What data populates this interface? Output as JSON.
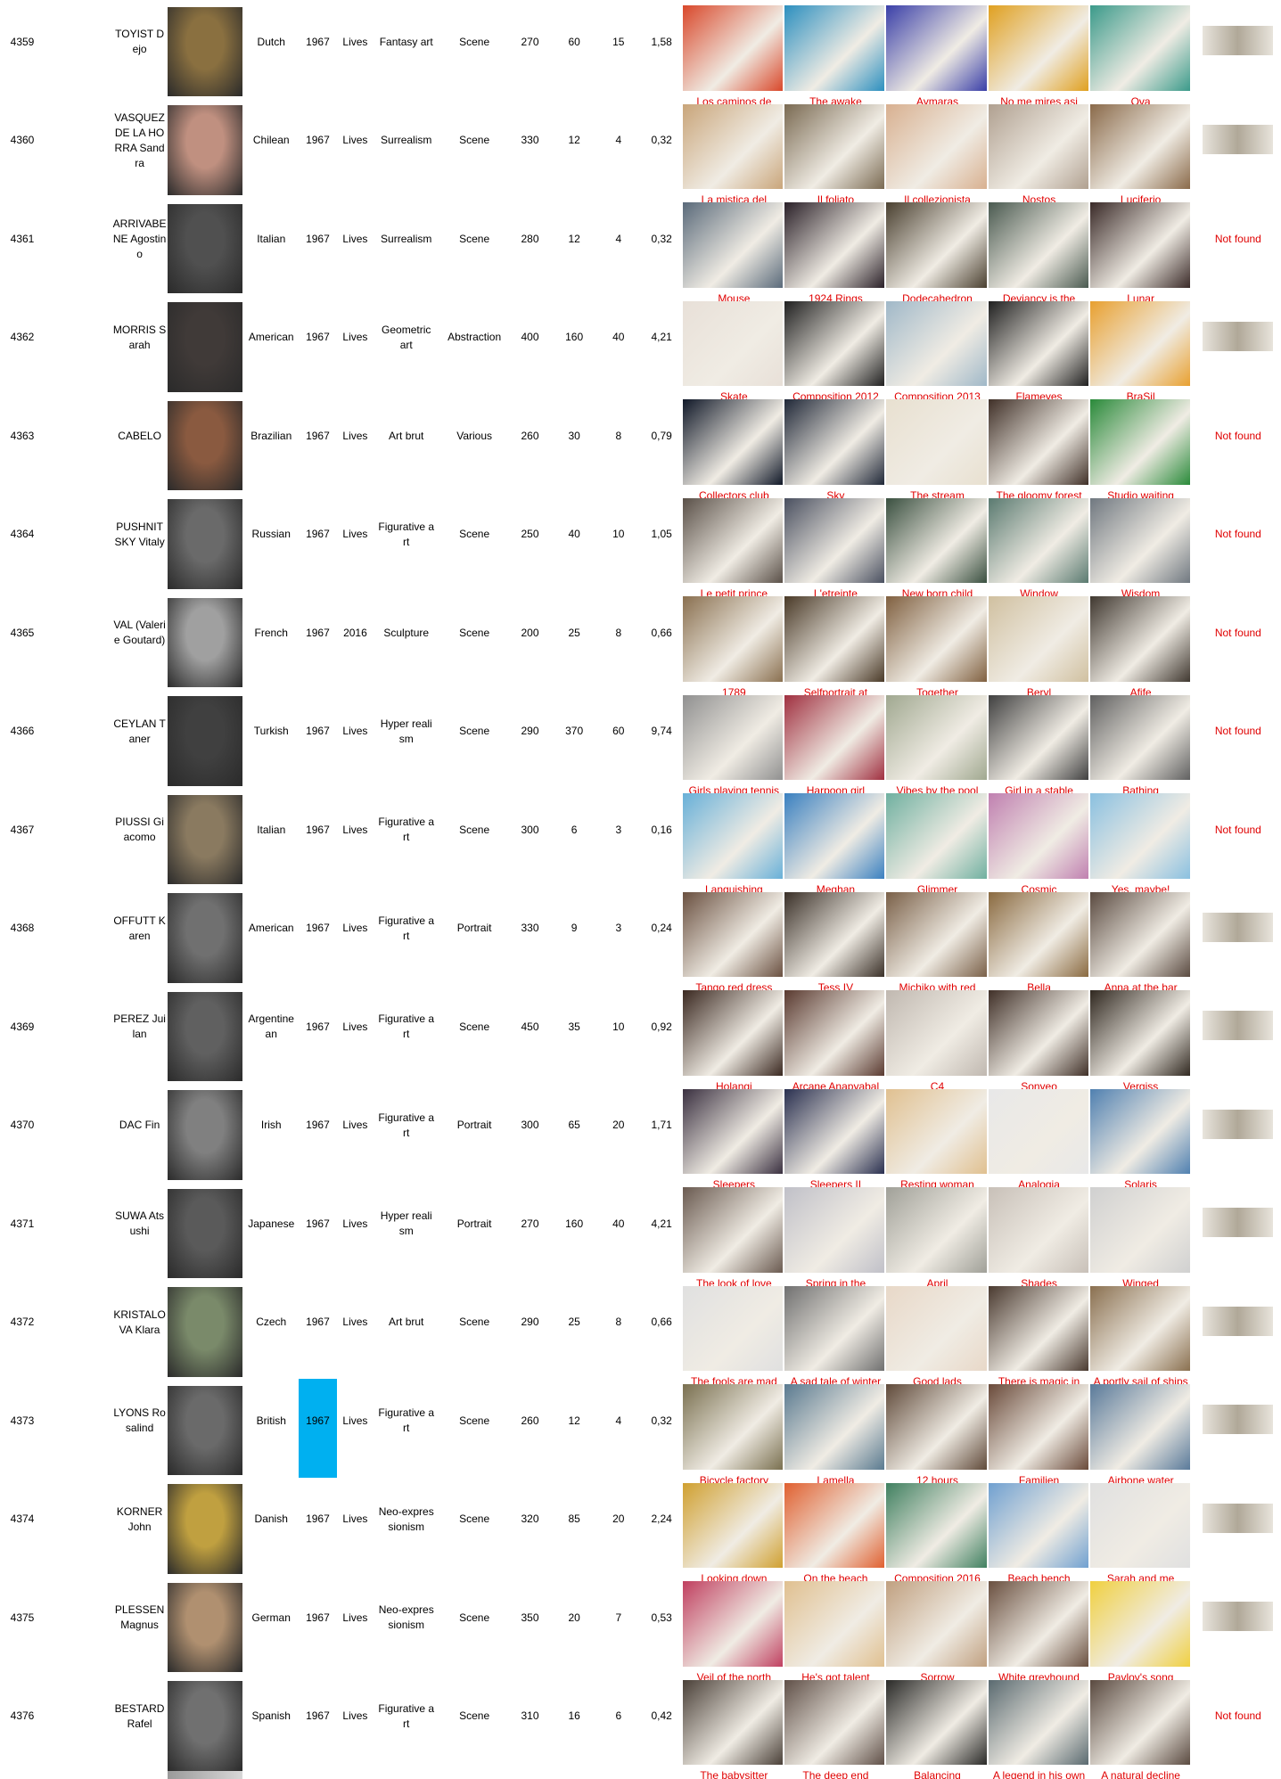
{
  "rows": [
    {
      "id": "4359",
      "name": "TOYIST Dejo",
      "nationality": "Dutch",
      "born": "1967",
      "died": "Lives",
      "movement": "Fantasy art",
      "genre": "Scene",
      "price": "270",
      "n1": "60",
      "n2": "15",
      "ratio": "1,58",
      "artworks": [
        "Los caminos de",
        "The awake",
        "Aymaras",
        "No me mires asi",
        "Ova"
      ]
    },
    {
      "id": "4360",
      "name": "VASQUEZ DE LA HORRA Sandra",
      "nationality": "Chilean",
      "born": "1967",
      "died": "Lives",
      "movement": "Surrealism",
      "genre": "Scene",
      "price": "330",
      "n1": "12",
      "n2": "4",
      "ratio": "0,32",
      "artworks": [
        "La mistica del",
        "Il foliato",
        "Il collezionista",
        "Nostos",
        "Luciferio"
      ]
    },
    {
      "id": "4361",
      "name": "ARRIVABENE Agostino",
      "nationality": "Italian",
      "born": "1967",
      "died": "Lives",
      "movement": "Surrealism",
      "genre": "Scene",
      "price": "280",
      "n1": "12",
      "n2": "4",
      "ratio": "0,32",
      "artworks": [
        "Mouse",
        "1924 Rings",
        "Dodecahedron",
        "Deviancy is the",
        "Lunar"
      ],
      "signature": "Not found"
    },
    {
      "id": "4362",
      "name": "MORRIS Sarah",
      "nationality": "American",
      "born": "1967",
      "died": "Lives",
      "movement": "Geometric art",
      "genre": "Abstraction",
      "price": "400",
      "n1": "160",
      "n2": "40",
      "ratio": "4,21",
      "artworks": [
        "Skate",
        "Composition 2012",
        "Composition 2013",
        "Flameyes",
        "BraSil"
      ]
    },
    {
      "id": "4363",
      "name": "CABELO",
      "nationality": "Brazilian",
      "born": "1967",
      "died": "Lives",
      "movement": "Art brut",
      "genre": "Various",
      "price": "260",
      "n1": "30",
      "n2": "8",
      "ratio": "0,79",
      "artworks": [
        "Collectors club",
        "Sky",
        "The stream",
        "The gloomy forest",
        "Studio waiting"
      ],
      "signature": "Not found"
    },
    {
      "id": "4364",
      "name": "PUSHNITSKY Vitaly",
      "nationality": "Russian",
      "born": "1967",
      "died": "Lives",
      "movement": "Figurative art",
      "genre": "Scene",
      "price": "250",
      "n1": "40",
      "n2": "10",
      "ratio": "1,05",
      "artworks": [
        "Le petit prince",
        "L'etreinte",
        "New born child",
        "Window",
        "Wisdom"
      ],
      "signature": "Not found"
    },
    {
      "id": "4365",
      "name": "VAL (Valerie Goutard)",
      "nationality": "French",
      "born": "1967",
      "died": "2016",
      "movement": "Sculpture",
      "genre": "Scene",
      "price": "200",
      "n1": "25",
      "n2": "8",
      "ratio": "0,66",
      "artworks": [
        "1789",
        "Selfportrait at",
        "Together",
        "Beryl",
        "Afife"
      ],
      "signature": "Not found"
    },
    {
      "id": "4366",
      "name": "CEYLAN Taner",
      "nationality": "Turkish",
      "born": "1967",
      "died": "Lives",
      "movement": "Hyper realism",
      "genre": "Scene",
      "price": "290",
      "n1": "370",
      "n2": "60",
      "ratio": "9,74",
      "artworks": [
        "Girls playing tennis",
        "Harpoon girl",
        "Vibes by the pool",
        "Girl in a stable",
        "Bathing"
      ],
      "signature": "Not found"
    },
    {
      "id": "4367",
      "name": "PIUSSI Giacomo",
      "nationality": "Italian",
      "born": "1967",
      "died": "Lives",
      "movement": "Figurative art",
      "genre": "Scene",
      "price": "300",
      "n1": "6",
      "n2": "3",
      "ratio": "0,16",
      "artworks": [
        "Languishing",
        "Meghan",
        "Glimmer",
        "Cosmic",
        "Yes, maybe!"
      ],
      "signature": "Not found"
    },
    {
      "id": "4368",
      "name": "OFFUTT Karen",
      "nationality": "American",
      "born": "1967",
      "died": "Lives",
      "movement": "Figurative art",
      "genre": "Portrait",
      "price": "330",
      "n1": "9",
      "n2": "3",
      "ratio": "0,24",
      "artworks": [
        "Tango red dress",
        "Tess IV",
        "Michiko with red",
        "Bella",
        "Anna at the bar"
      ]
    },
    {
      "id": "4369",
      "name": "PEREZ Juilan",
      "nationality": "Argentinean",
      "born": "1967",
      "died": "Lives",
      "movement": "Figurative art",
      "genre": "Scene",
      "price": "450",
      "n1": "35",
      "n2": "10",
      "ratio": "0,92",
      "artworks": [
        "Holangi",
        "Arcane Anapyabal",
        "C4",
        "Sonyeo",
        "Vergiss"
      ]
    },
    {
      "id": "4370",
      "name": "DAC Fin",
      "nationality": "Irish",
      "born": "1967",
      "died": "Lives",
      "movement": "Figurative art",
      "genre": "Portrait",
      "price": "300",
      "n1": "65",
      "n2": "20",
      "ratio": "1,71",
      "artworks": [
        "Sleepers",
        "Sleepers II",
        "Resting woman",
        "Analogia",
        "Solaris"
      ]
    },
    {
      "id": "4371",
      "name": "SUWA Atsushi",
      "nationality": "Japanese",
      "born": "1967",
      "died": "Lives",
      "movement": "Hyper realism",
      "genre": "Portrait",
      "price": "270",
      "n1": "160",
      "n2": "40",
      "ratio": "4,21",
      "artworks": [
        "The look of love",
        "Spring in the",
        "April",
        "Shades",
        "Winged"
      ]
    },
    {
      "id": "4372",
      "name": "KRISTALOVA Klara",
      "nationality": "Czech",
      "born": "1967",
      "died": "Lives",
      "movement": "Art brut",
      "genre": "Scene",
      "price": "290",
      "n1": "25",
      "n2": "8",
      "ratio": "0,66",
      "artworks": [
        "The fools are mad",
        "A sad tale of winter",
        "Good lads",
        "There is magic in",
        "A portly sail of ships"
      ]
    },
    {
      "id": "4373",
      "name": "LYONS Rosalind",
      "nationality": "British",
      "born": "1967",
      "died": "Lives",
      "movement": "Figurative art",
      "genre": "Scene",
      "price": "260",
      "n1": "12",
      "n2": "4",
      "ratio": "0,32",
      "artworks": [
        "Bicycle factory",
        "Lamella",
        "12 hours",
        "Familien",
        "Airbone water"
      ],
      "highlight": true
    },
    {
      "id": "4374",
      "name": "KORNER John",
      "nationality": "Danish",
      "born": "1967",
      "died": "Lives",
      "movement": "Neo-expressionism",
      "genre": "Scene",
      "price": "320",
      "n1": "85",
      "n2": "20",
      "ratio": "2,24",
      "artworks": [
        "Looking down",
        "On the beach",
        "Composition 2016",
        "Beach bench",
        "Sarah and me"
      ]
    },
    {
      "id": "4375",
      "name": "PLESSEN Magnus",
      "nationality": "German",
      "born": "1967",
      "died": "Lives",
      "movement": "Neo-expressionism",
      "genre": "Scene",
      "price": "350",
      "n1": "20",
      "n2": "7",
      "ratio": "0,53",
      "artworks": [
        "Veil of the north",
        "He's got talent",
        "Sorrow",
        "White greyhound",
        "Pavlov's song"
      ]
    },
    {
      "id": "4376",
      "name": "BESTARD Rafel",
      "nationality": "Spanish",
      "born": "1967",
      "died": "Lives",
      "movement": "Figurative art",
      "genre": "Scene",
      "price": "310",
      "n1": "16",
      "n2": "6",
      "ratio": "0,42",
      "artworks": [
        "The babysitter",
        "The deep end",
        "Balancing",
        "A legend in his own",
        "A natural decline"
      ],
      "signature": "Not found"
    }
  ]
}
